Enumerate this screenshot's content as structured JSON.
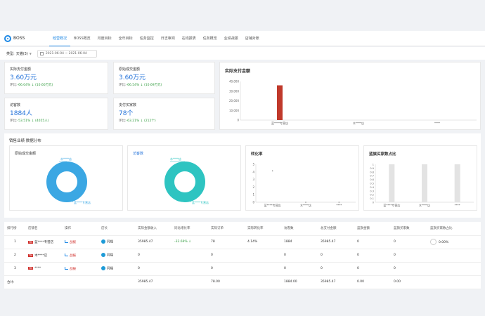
{
  "nav": {
    "brand": "BOSS",
    "items": [
      "经营概况",
      "BOSS概览",
      "月度目标",
      "全年目标",
      "任务监控",
      "日志审阅",
      "在线报表",
      "任务概览",
      "业绩战报",
      "店铺对账"
    ]
  },
  "filter": {
    "label": "类型:",
    "value": "天猫(3)",
    "date_range": "2021-06-04 ~ 2021-06-04"
  },
  "kpis": [
    {
      "title": "实际支付金额",
      "value": "3.60万元",
      "compare_prefix": "环比:",
      "pct": "-66.04%",
      "amount": "(10.60万元)"
    },
    {
      "title": "原始成交金额",
      "value": "3.60万元",
      "compare_prefix": "环比:",
      "pct": "-66.54%",
      "amount": "(10.69万元)"
    },
    {
      "title": "访客数",
      "value": "1884人",
      "compare_prefix": "环比:",
      "pct": "-53.51%",
      "amount": "(4055人)"
    },
    {
      "title": "支付买家数",
      "value": "78个",
      "compare_prefix": "环比:",
      "pct": "-63.21%",
      "amount": "(212个)"
    }
  ],
  "actual_payment_chart": {
    "title": "实际支付金额",
    "chart_data": {
      "type": "bar",
      "categories": [
        "蓝****专营店",
        "木****店",
        "****"
      ],
      "values": [
        35985.47,
        0,
        0
      ],
      "ylim": [
        0,
        40000
      ],
      "yticks": [
        "40,000",
        "30,000",
        "20,000",
        "10,000",
        "0"
      ],
      "bar_color": "#c0392b"
    }
  },
  "performance": {
    "title": "销售业绩 数据分布",
    "donut1": {
      "title": "原始成交金额",
      "label_top": "木****店",
      "label_bottom": "蓝****专营店",
      "color": "#3ba7e3"
    },
    "donut2": {
      "title": "访客数",
      "label_top": "木****店",
      "label_bottom": "蓝****专营店",
      "color": "#2ec4c1"
    },
    "conversion": {
      "title": "转化率",
      "chart_data": {
        "type": "line",
        "categories": [
          "蓝****专营店",
          "木****店",
          "****"
        ],
        "values": [
          4.14,
          0,
          0
        ],
        "ylim": [
          0,
          5
        ],
        "yticks": [
          "5",
          "4",
          "3",
          "2",
          "1",
          "0"
        ]
      }
    },
    "bluediamond": {
      "title": "蓝旗买家数占比",
      "chart_data": {
        "type": "bar",
        "categories": [
          "蓝****专营店",
          "木****店",
          "****"
        ],
        "values": [
          0,
          0,
          0
        ],
        "ylim": [
          0,
          1
        ],
        "yticks": [
          "1",
          "0.9",
          "0.8",
          "0.7",
          "0.6",
          "0.5",
          "0.4",
          "0.3",
          "0.2",
          "0.1",
          "0"
        ]
      }
    }
  },
  "table": {
    "headers": [
      "排行榜",
      "店铺名",
      "操作",
      "店长",
      "实际金额收入",
      "同比增长率",
      "实际订单",
      "实际转化率",
      "访客数",
      "总支付金额",
      "蓝旗金额",
      "蓝旗买家数",
      "蓝旗买家数占比"
    ],
    "rows": [
      {
        "rank": "1",
        "tag": "TM",
        "shop": "蓝****专营店",
        "report": "战报",
        "owner": "同端",
        "income": "35985.47",
        "growth": "-32.69%",
        "orders": "78",
        "conv": "4.14%",
        "visitors": "1884",
        "total": "35985.47",
        "bd_amount": "0",
        "bd_buyers": "0",
        "bd_ratio": "0.00%"
      },
      {
        "rank": "2",
        "tag": "TM",
        "shop": "木****店",
        "report": "战报",
        "owner": "同端",
        "income": "0",
        "growth": "",
        "orders": "0",
        "conv": "",
        "visitors": "0",
        "total": "0",
        "bd_amount": "0",
        "bd_buyers": "0",
        "bd_ratio": ""
      },
      {
        "rank": "3",
        "tag": "TM",
        "shop": "****",
        "report": "战报",
        "owner": "同端",
        "income": "0",
        "growth": "",
        "orders": "0",
        "conv": "",
        "visitors": "0",
        "total": "0",
        "bd_amount": "0",
        "bd_buyers": "0",
        "bd_ratio": ""
      }
    ],
    "total": {
      "label": "合计:",
      "income": "35985.47",
      "orders": "78.00",
      "visitors": "1884.00",
      "total": "35985.47",
      "bd_amount": "0.00",
      "bd_buyers": "0.00"
    }
  }
}
